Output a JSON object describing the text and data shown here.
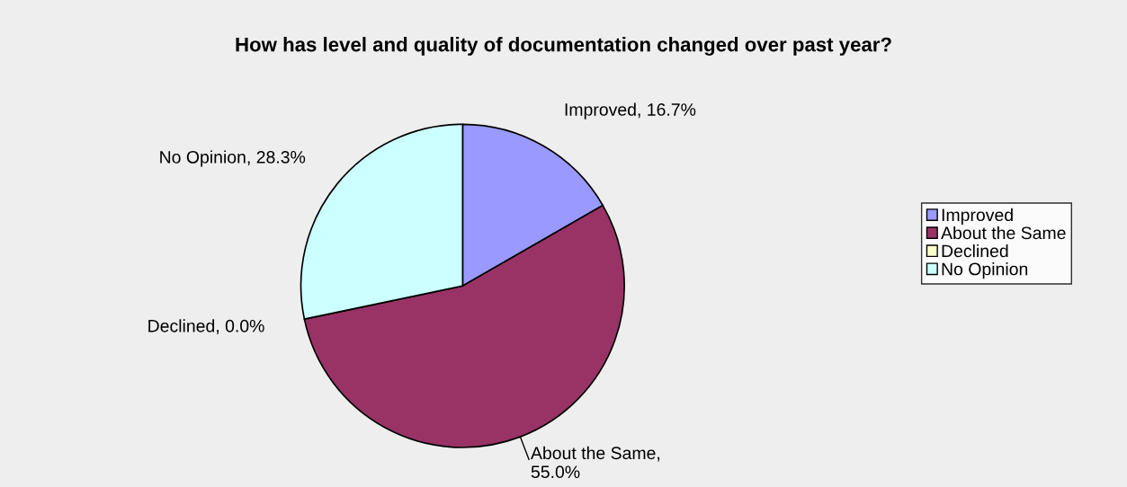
{
  "chart_data": {
    "type": "pie",
    "title": "How has level and quality of documentation changed over past year?",
    "categories": [
      "Improved",
      "About the Same",
      "Declined",
      "No Opinion"
    ],
    "values": [
      16.7,
      55.0,
      0.0,
      28.3
    ],
    "colors": [
      "#9999ff",
      "#993366",
      "#ffffcc",
      "#ccffff"
    ],
    "value_labels": [
      "Improved, 16.7%",
      "About the Same,\n55.0%",
      "Declined, 0.0%",
      "No Opinion, 28.3%"
    ],
    "legend": "right"
  }
}
